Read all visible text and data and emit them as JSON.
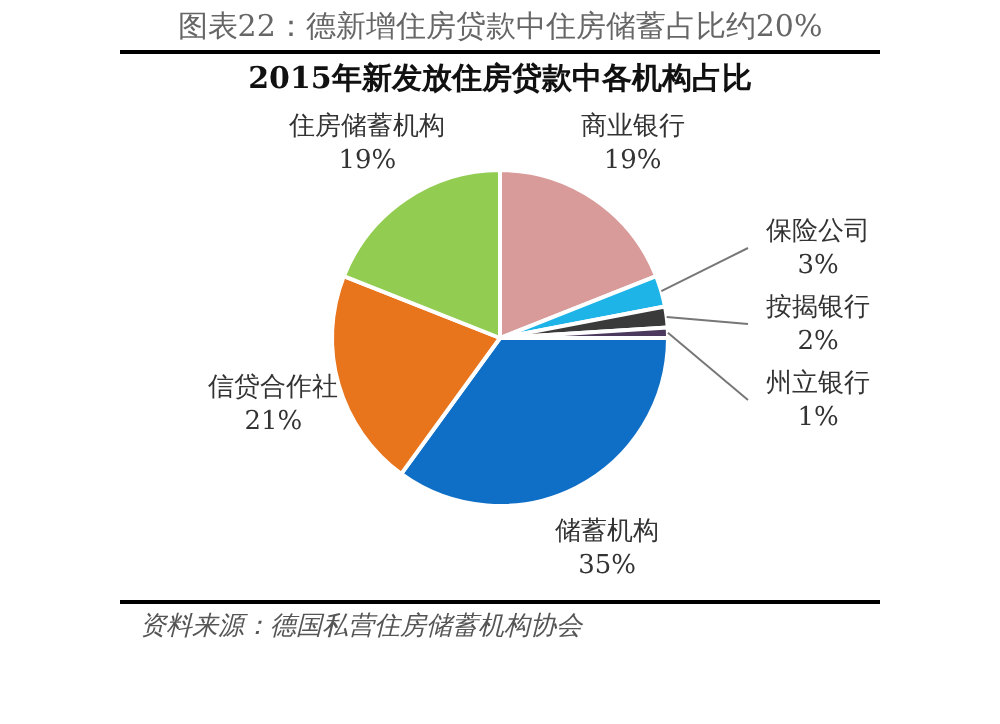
{
  "chart_data": {
    "type": "pie",
    "title": "图表22：德新增住房贷款中住房储蓄占比约20%",
    "subtitle": "2015年新发放住房贷款中各机构占比",
    "categories": [
      "商业银行",
      "保险公司",
      "按揭银行",
      "州立银行",
      "储蓄机构",
      "信贷合作社",
      "住房储蓄机构"
    ],
    "values": [
      19,
      3,
      2,
      1,
      35,
      21,
      19
    ],
    "value_labels": [
      "19%",
      "3%",
      "2%",
      "1%",
      "35%",
      "21%",
      "19%"
    ],
    "colors": [
      "#d99a9a",
      "#1fb4e8",
      "#3a3a3a",
      "#4b3a5e",
      "#0f6fc6",
      "#e8741c",
      "#92cc50"
    ],
    "legend": false,
    "annotations": [
      "资料来源：德国私营住房储蓄机构协会"
    ]
  }
}
